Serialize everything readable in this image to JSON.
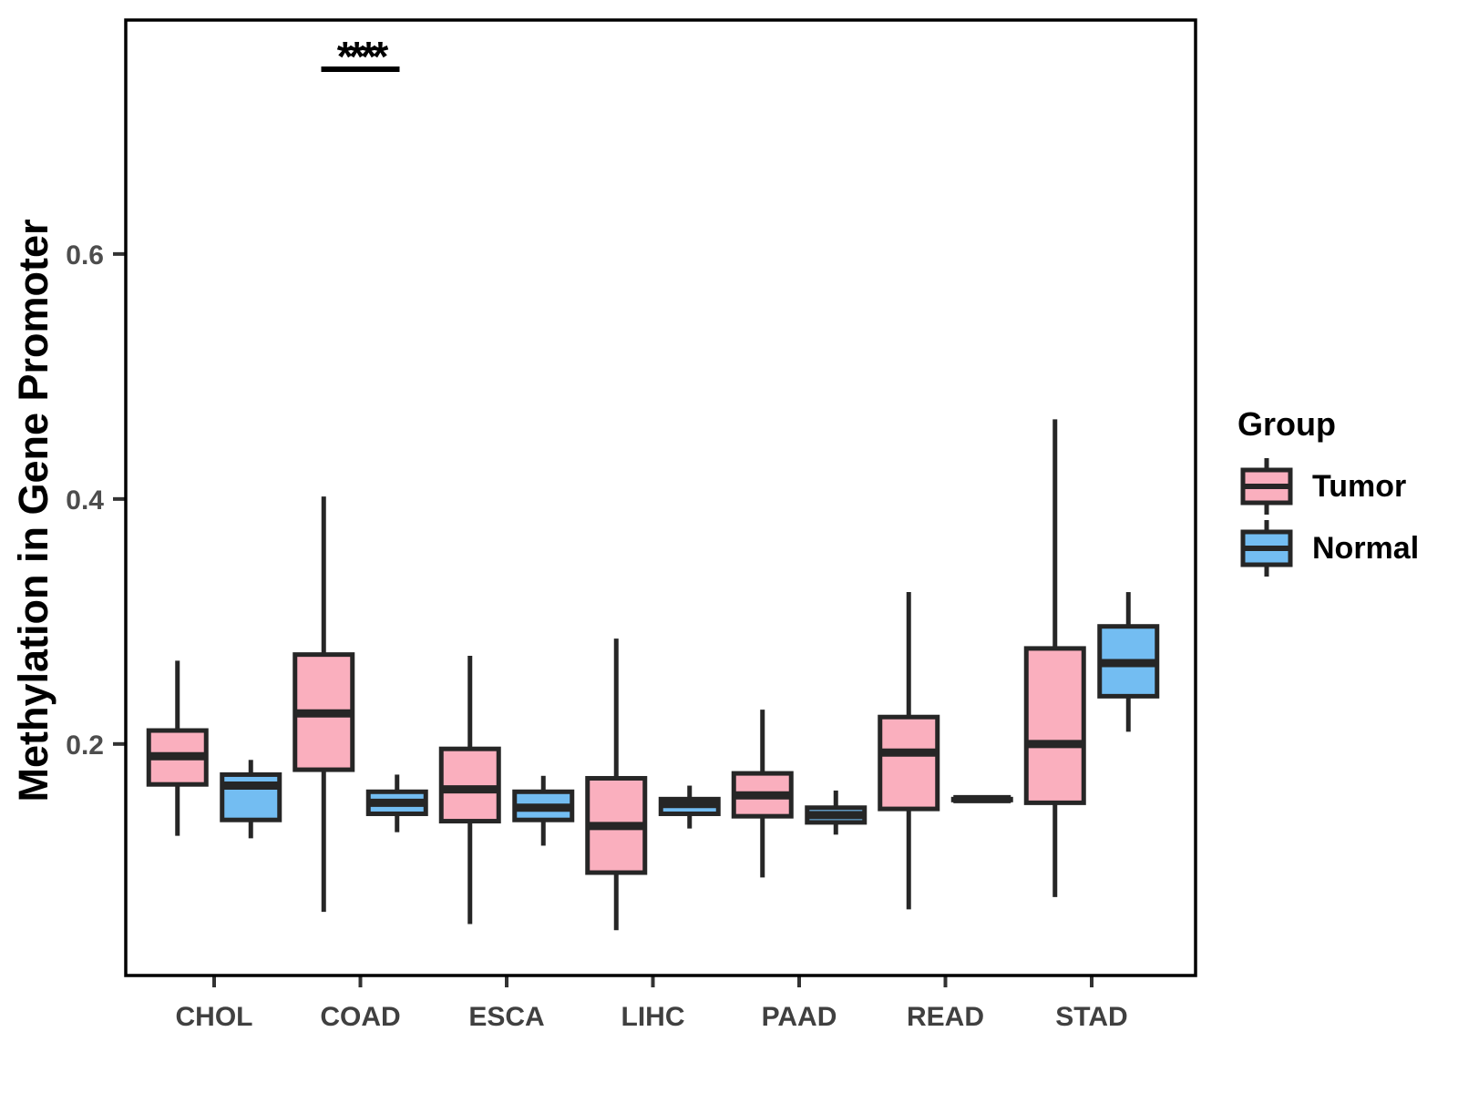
{
  "chart_data": {
    "type": "boxplot",
    "ylabel": "Methylation in Gene Promoter",
    "categories": [
      "CHOL",
      "COAD",
      "ESCA",
      "LIHC",
      "PAAD",
      "READ",
      "STAD"
    ],
    "yticks": [
      0.2,
      0.4,
      0.6
    ],
    "ylim": [
      0.011,
      0.791
    ],
    "grid": "off",
    "legend_position": "right",
    "legend": {
      "title": "Group",
      "entries": [
        {
          "label": "Tumor",
          "color": "#FAAFBE"
        },
        {
          "label": "Normal",
          "color": "#73BDF2"
        }
      ]
    },
    "significance": [
      {
        "category": "COAD",
        "label": "****"
      }
    ],
    "series": [
      {
        "name": "Tumor",
        "color": "#FAAFBE",
        "boxes": [
          {
            "category": "CHOL",
            "min": 0.125,
            "q1": 0.167,
            "median": 0.19,
            "q3": 0.211,
            "max": 0.268
          },
          {
            "category": "COAD",
            "min": 0.063,
            "q1": 0.179,
            "median": 0.225,
            "q3": 0.273,
            "max": 0.402
          },
          {
            "category": "ESCA",
            "min": 0.053,
            "q1": 0.137,
            "median": 0.163,
            "q3": 0.196,
            "max": 0.272
          },
          {
            "category": "LIHC",
            "min": 0.048,
            "q1": 0.095,
            "median": 0.133,
            "q3": 0.172,
            "max": 0.286
          },
          {
            "category": "PAAD",
            "min": 0.091,
            "q1": 0.141,
            "median": 0.158,
            "q3": 0.176,
            "max": 0.228
          },
          {
            "category": "READ",
            "min": 0.065,
            "q1": 0.147,
            "median": 0.193,
            "q3": 0.222,
            "max": 0.324
          },
          {
            "category": "STAD",
            "min": 0.075,
            "q1": 0.152,
            "median": 0.2,
            "q3": 0.278,
            "max": 0.465
          }
        ]
      },
      {
        "name": "Normal",
        "color": "#73BDF2",
        "boxes": [
          {
            "category": "CHOL",
            "min": 0.123,
            "q1": 0.138,
            "median": 0.166,
            "q3": 0.175,
            "max": 0.187
          },
          {
            "category": "COAD",
            "min": 0.128,
            "q1": 0.143,
            "median": 0.152,
            "q3": 0.161,
            "max": 0.175
          },
          {
            "category": "ESCA",
            "min": 0.117,
            "q1": 0.138,
            "median": 0.148,
            "q3": 0.161,
            "max": 0.174
          },
          {
            "category": "LIHC",
            "min": 0.131,
            "q1": 0.143,
            "median": 0.151,
            "q3": 0.155,
            "max": 0.166
          },
          {
            "category": "PAAD",
            "min": 0.126,
            "q1": 0.136,
            "median": 0.142,
            "q3": 0.148,
            "max": 0.162
          },
          {
            "category": "READ",
            "min": 0.155,
            "q1": 0.155,
            "median": 0.155,
            "q3": 0.155,
            "max": 0.155
          },
          {
            "category": "STAD",
            "min": 0.21,
            "q1": 0.239,
            "median": 0.266,
            "q3": 0.296,
            "max": 0.324
          }
        ]
      }
    ],
    "style": {
      "box_border": "#262626",
      "axis_color": "#000000",
      "tick_color": "#333333",
      "tick_label_color": "#4D4D4D",
      "category_label_color": "#404040"
    }
  }
}
